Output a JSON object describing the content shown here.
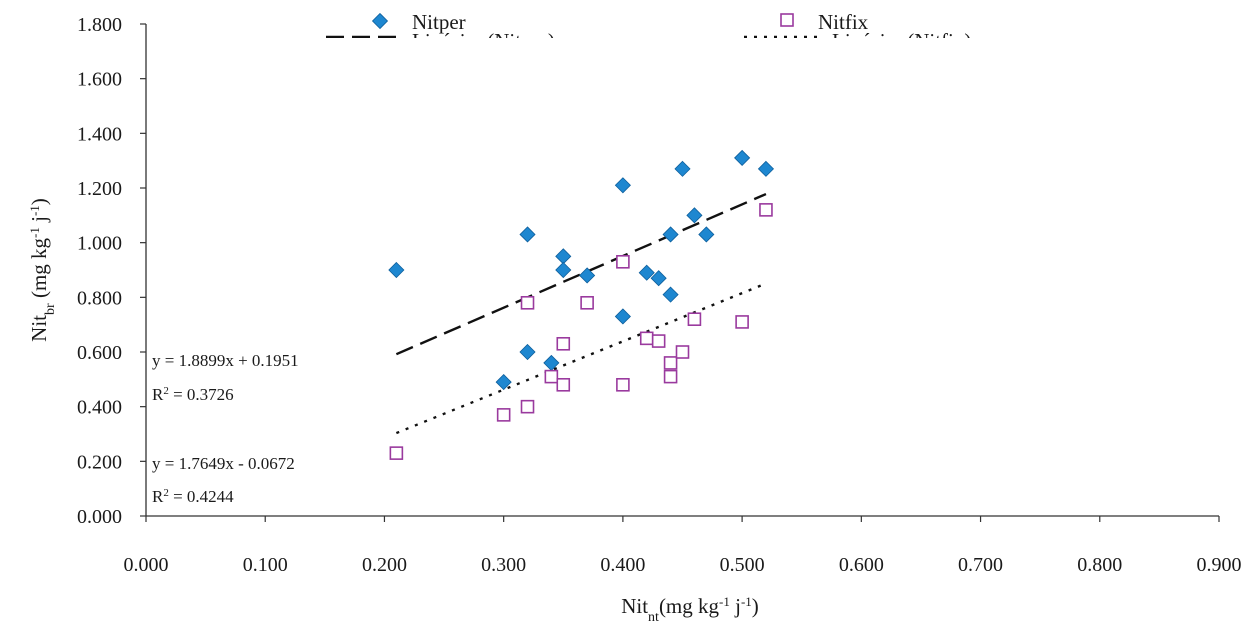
{
  "chart_data": {
    "type": "scatter",
    "xlabel": {
      "main": "Nit",
      "sub": "nt",
      "rest": "(mg kg",
      "exp1": "-1",
      "mid": " j",
      "exp2": "-1",
      "close": ")"
    },
    "ylabel": {
      "main": "Nit",
      "sub": "br",
      "rest": " (mg kg",
      "exp1": "-1",
      "mid": " j",
      "exp2": "-1",
      "close": ")"
    },
    "xlim": [
      0,
      0.9
    ],
    "ylim": [
      0,
      1.8
    ],
    "x_ticks": [
      "0.000",
      "0.100",
      "0.200",
      "0.300",
      "0.400",
      "0.500",
      "0.600",
      "0.700",
      "0.800",
      "0.900"
    ],
    "y_ticks": [
      "0.000",
      "0.200",
      "0.400",
      "0.600",
      "0.800",
      "1.000",
      "1.200",
      "1.400",
      "1.600",
      "1.800"
    ],
    "grid": false,
    "legend_position": "top",
    "series": [
      {
        "name": "Nitper",
        "marker": "diamond",
        "color": "#1e87d0",
        "points": [
          [
            0.21,
            0.9
          ],
          [
            0.3,
            0.49
          ],
          [
            0.32,
            1.03
          ],
          [
            0.32,
            0.6
          ],
          [
            0.34,
            0.56
          ],
          [
            0.35,
            0.95
          ],
          [
            0.35,
            0.9
          ],
          [
            0.37,
            0.88
          ],
          [
            0.4,
            1.21
          ],
          [
            0.4,
            0.73
          ],
          [
            0.42,
            0.89
          ],
          [
            0.43,
            0.87
          ],
          [
            0.44,
            1.03
          ],
          [
            0.44,
            0.81
          ],
          [
            0.45,
            1.27
          ],
          [
            0.46,
            1.1
          ],
          [
            0.47,
            1.03
          ],
          [
            0.5,
            1.31
          ],
          [
            0.52,
            1.27
          ]
        ]
      },
      {
        "name": "Nitfix",
        "marker": "square-open",
        "color": "#9a3a9e",
        "points": [
          [
            0.21,
            0.23
          ],
          [
            0.3,
            0.37
          ],
          [
            0.32,
            0.78
          ],
          [
            0.32,
            0.4
          ],
          [
            0.34,
            0.51
          ],
          [
            0.35,
            0.63
          ],
          [
            0.35,
            0.48
          ],
          [
            0.37,
            0.78
          ],
          [
            0.4,
            0.93
          ],
          [
            0.4,
            0.48
          ],
          [
            0.42,
            0.65
          ],
          [
            0.43,
            0.64
          ],
          [
            0.44,
            0.56
          ],
          [
            0.44,
            0.51
          ],
          [
            0.45,
            0.6
          ],
          [
            0.46,
            0.72
          ],
          [
            0.5,
            0.71
          ],
          [
            0.52,
            1.12
          ]
        ]
      }
    ],
    "trendlines": [
      {
        "name": "Linéaire (Nitper)",
        "style": "dashed",
        "slope": 1.8899,
        "intercept": 0.1951,
        "x_range": [
          0.21,
          0.52
        ]
      },
      {
        "name": "Linéaire (Nitfix)",
        "style": "dotted",
        "slope": 1.7649,
        "intercept": -0.0672,
        "x_range": [
          0.21,
          0.52
        ]
      }
    ],
    "equations": [
      {
        "eq": "y = 1.8899x + 0.1951",
        "r2_label": "R",
        "r2_exp": "2",
        "r2_value": " = 0.3726"
      },
      {
        "eq": "y = 1.7649x - 0.0672",
        "r2_label": "R",
        "r2_exp": "2",
        "r2_value": " = 0.4244"
      }
    ]
  }
}
